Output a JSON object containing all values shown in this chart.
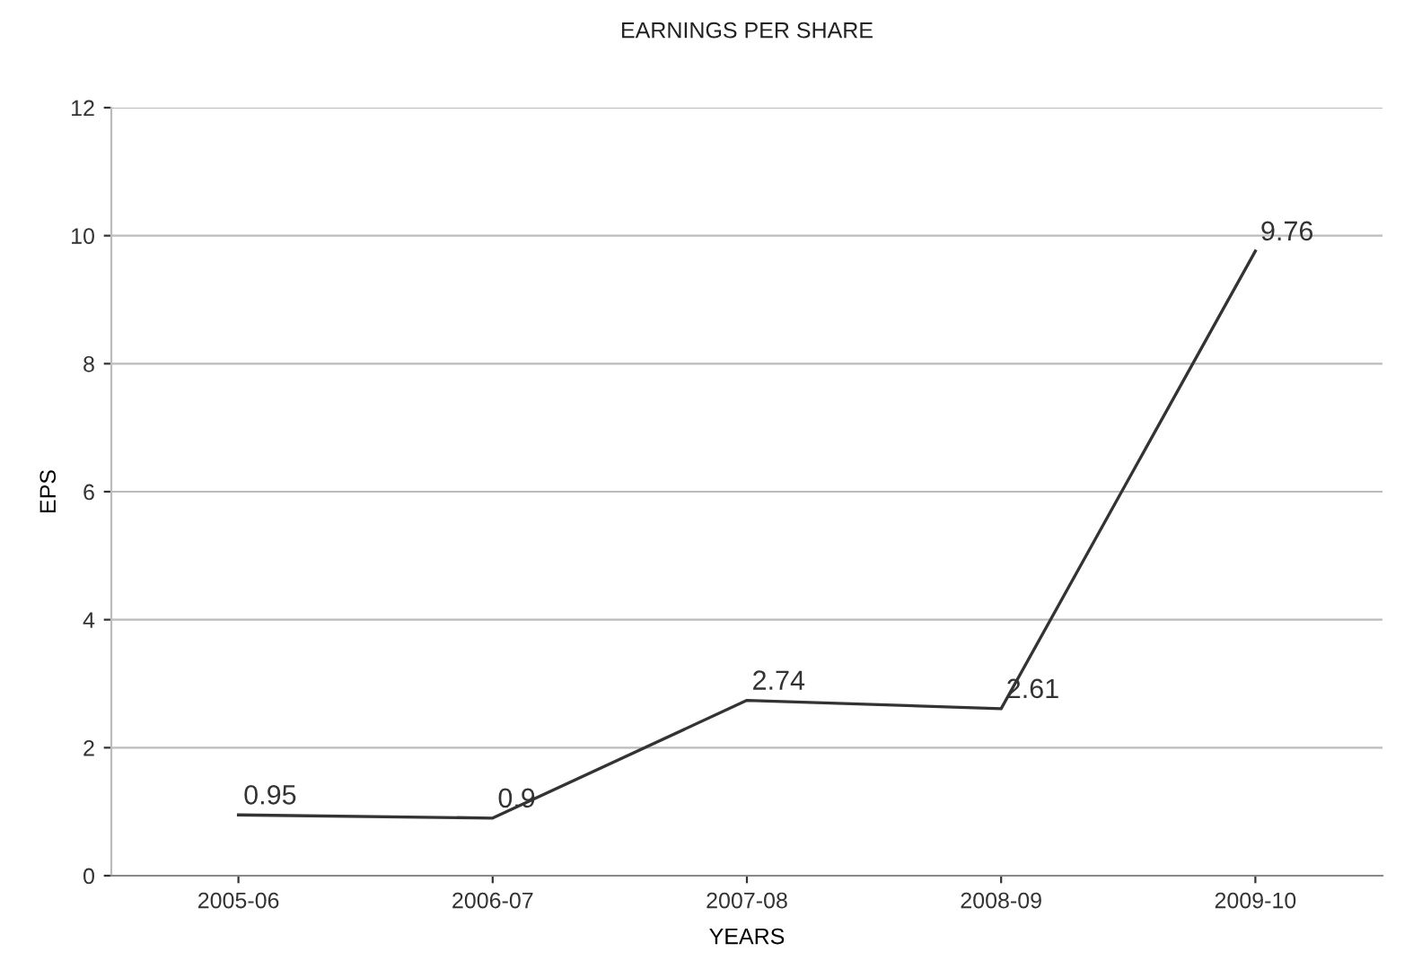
{
  "chart_data": {
    "type": "line",
    "title": "EARNINGS PER SHARE",
    "xlabel": "YEARS",
    "ylabel": "EPS",
    "categories": [
      "2005-06",
      "2006-07",
      "2007-08",
      "2008-09",
      "2009-10"
    ],
    "series": [
      {
        "color": "#333333",
        "values": [
          0.95,
          0.9,
          2.74,
          2.61,
          9.76
        ]
      }
    ],
    "ylim": [
      0,
      12
    ],
    "yticks": [
      0,
      2,
      4,
      6,
      8,
      10,
      12
    ],
    "grid": "y",
    "data_labels": true,
    "marker": "none",
    "line_style": "solid"
  }
}
